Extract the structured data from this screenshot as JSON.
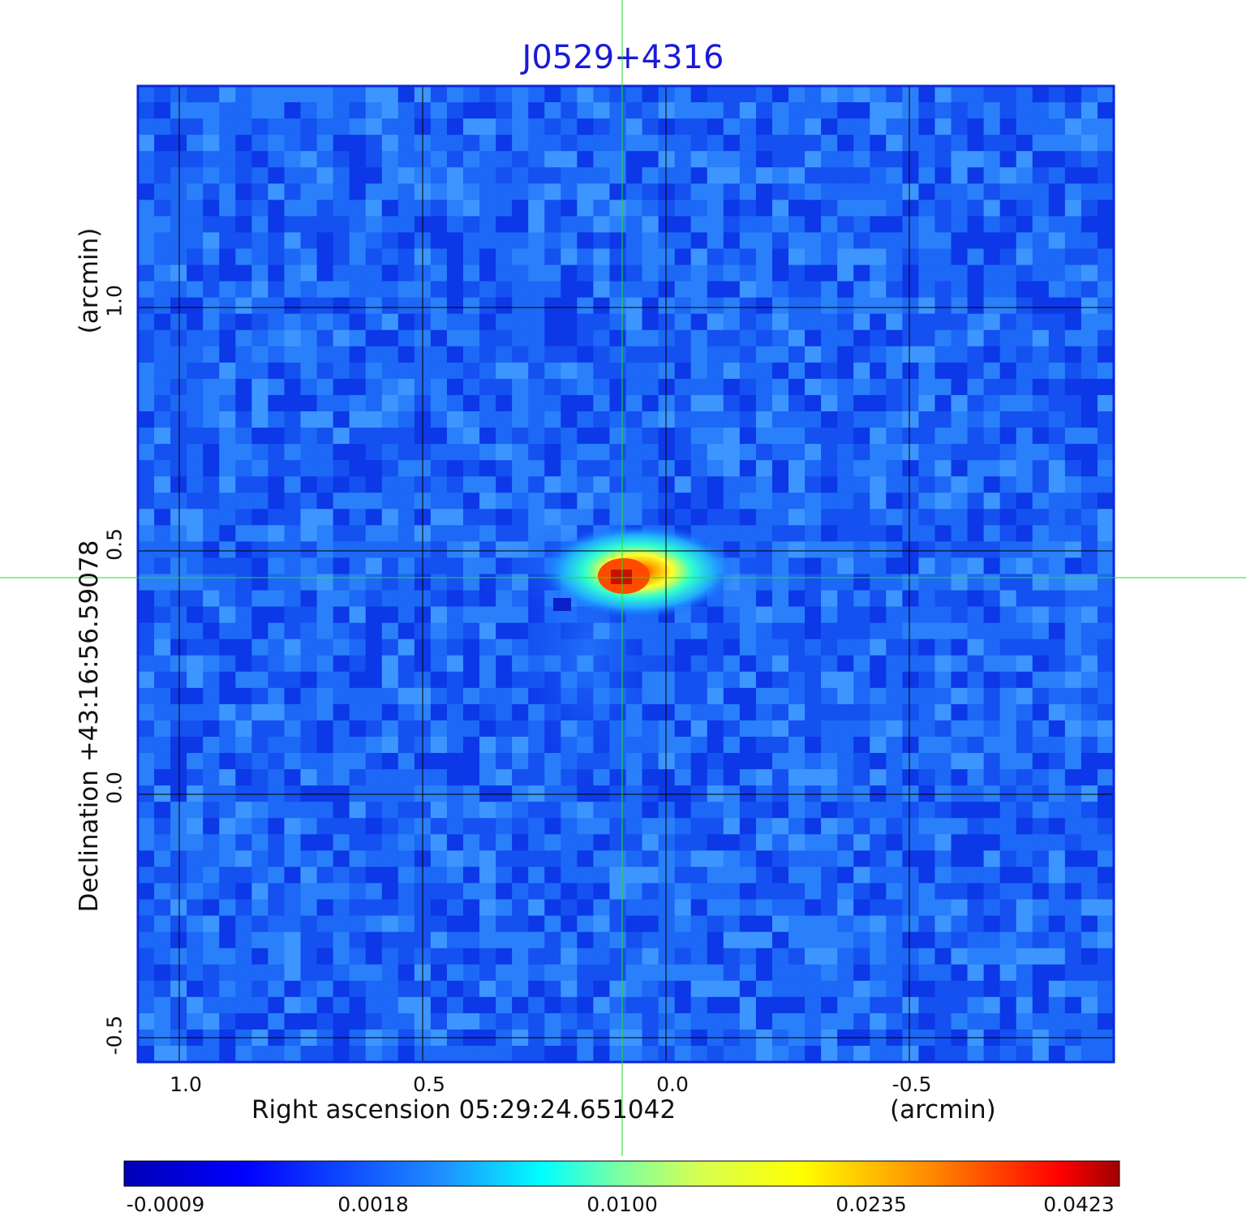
{
  "chart_data": {
    "type": "heatmap",
    "title": "J0529+4316",
    "xlabel": "Right ascension  05:29:24.651042",
    "xunit": "(arcmin)",
    "ylabel": "Declination  +43:16:56.59078",
    "yunit": "(arcmin)",
    "x_ticks": [
      {
        "label": "1.0",
        "value": 1.0
      },
      {
        "label": "0.5",
        "value": 0.5
      },
      {
        "label": "0.0",
        "value": 0.0
      },
      {
        "label": "-0.5",
        "value": -0.5
      }
    ],
    "y_ticks": [
      {
        "label": "1.0",
        "value": 1.0
      },
      {
        "label": "0.5",
        "value": 0.5
      },
      {
        "label": "0.0",
        "value": 0.0
      },
      {
        "label": "-0.5",
        "value": -0.5
      }
    ],
    "xlim": [
      1.085,
      -0.92
    ],
    "ylim": [
      -0.55,
      1.455
    ],
    "grid": true,
    "crosshair": {
      "x": 0.09,
      "y": 0.445,
      "color": "#22dd22"
    },
    "peak": {
      "x": 0.09,
      "y": 0.445,
      "value": 0.0423
    },
    "colormap": "jet",
    "colorbar": {
      "labels": [
        "-0.0009",
        "0.0018",
        "0.0100",
        "0.0235",
        "0.0423"
      ],
      "values": [
        -0.0009,
        0.0018,
        0.01,
        0.0235,
        0.0423
      ]
    }
  }
}
